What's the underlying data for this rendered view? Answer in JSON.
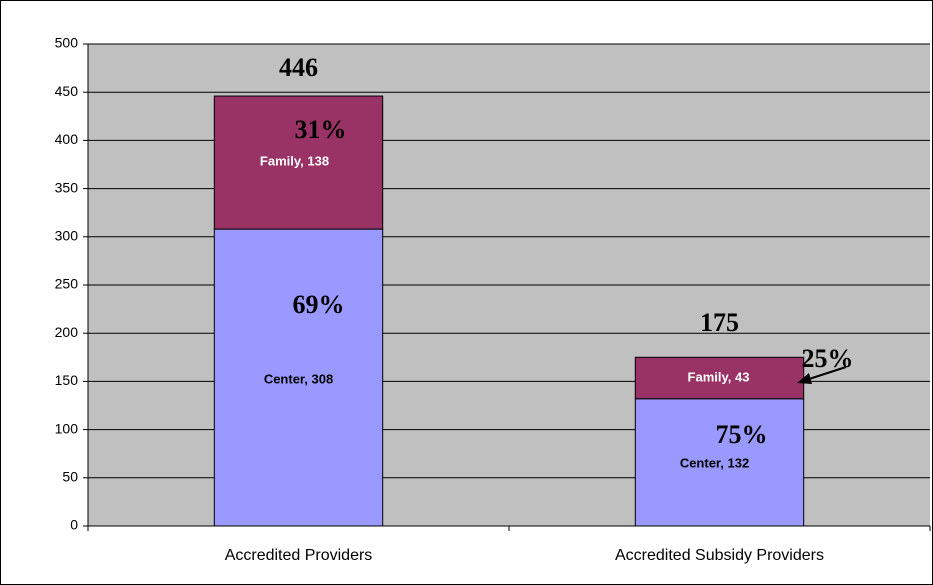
{
  "chart_data": {
    "type": "stacked_bar",
    "categories": [
      "Accredited Providers",
      "Accredited Subsidy Providers"
    ],
    "series": [
      {
        "name": "Center",
        "color": "#9999ff",
        "values": [
          308,
          132
        ],
        "value_labels": [
          "Center, 308",
          "Center, 132"
        ],
        "shares": [
          69,
          75
        ],
        "share_labels": [
          "69%",
          "75%"
        ]
      },
      {
        "name": "Family",
        "color": "#993366",
        "values": [
          138,
          43
        ],
        "value_labels": [
          "Family, 138",
          "Family, 43"
        ],
        "shares": [
          31,
          25
        ],
        "share_labels": [
          "31%",
          "25%"
        ]
      }
    ],
    "totals": [
      446,
      175
    ],
    "ylim": [
      0,
      500
    ],
    "yticks": [
      0,
      50,
      100,
      150,
      200,
      250,
      300,
      350,
      400,
      450,
      500
    ],
    "grid": true,
    "plot_background": "#c0c0c0"
  }
}
